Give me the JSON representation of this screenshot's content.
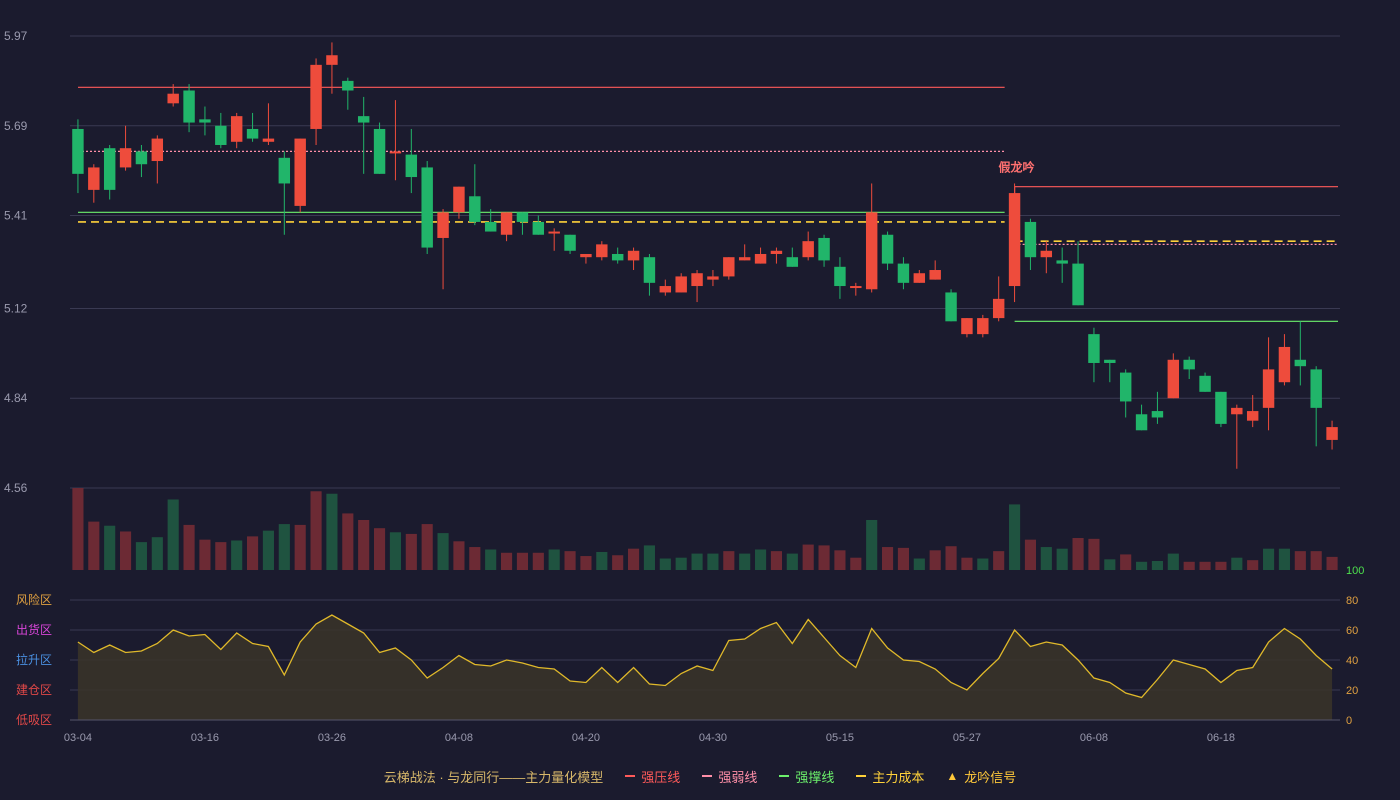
{
  "chart_data": {
    "type": "candlestick",
    "price_axis": {
      "min": 4.56,
      "max": 5.97,
      "ticks": [
        "5.97",
        "5.69",
        "5.41",
        "5.12",
        "4.84",
        "4.56"
      ]
    },
    "indicator_axis": {
      "min": 0,
      "max": 100,
      "ticks": [
        "100",
        "80",
        "60",
        "40",
        "20",
        "0"
      ]
    },
    "zones": [
      {
        "label": "风险区",
        "color": "#e0a040"
      },
      {
        "label": "出货区",
        "color": "#d845d8"
      },
      {
        "label": "拉升区",
        "color": "#4a8fe0"
      },
      {
        "label": "建仓区",
        "color": "#e04848"
      },
      {
        "label": "低吸区",
        "color": "#e04848"
      }
    ],
    "x_ticks": [
      {
        "index": 0,
        "label": "03-04"
      },
      {
        "index": 8,
        "label": "03-16"
      },
      {
        "index": 16,
        "label": "03-26"
      },
      {
        "index": 24,
        "label": "04-08"
      },
      {
        "index": 32,
        "label": "04-20"
      },
      {
        "index": 40,
        "label": "04-30"
      },
      {
        "index": 48,
        "label": "05-15"
      },
      {
        "index": 56,
        "label": "05-27"
      },
      {
        "index": 64,
        "label": "06-08"
      },
      {
        "index": 72,
        "label": "06-18"
      }
    ],
    "candles": [
      [
        5.68,
        5.54,
        5.71,
        5.48
      ],
      [
        5.49,
        5.56,
        5.57,
        5.45
      ],
      [
        5.62,
        5.49,
        5.63,
        5.46
      ],
      [
        5.56,
        5.62,
        5.69,
        5.55
      ],
      [
        5.61,
        5.57,
        5.63,
        5.53
      ],
      [
        5.58,
        5.65,
        5.66,
        5.51
      ],
      [
        5.76,
        5.79,
        5.82,
        5.75
      ],
      [
        5.8,
        5.7,
        5.82,
        5.67
      ],
      [
        5.71,
        5.7,
        5.75,
        5.66
      ],
      [
        5.69,
        5.63,
        5.73,
        5.62
      ],
      [
        5.64,
        5.72,
        5.73,
        5.62
      ],
      [
        5.68,
        5.65,
        5.73,
        5.64
      ],
      [
        5.64,
        5.65,
        5.76,
        5.63
      ],
      [
        5.59,
        5.51,
        5.61,
        5.35
      ],
      [
        5.44,
        5.65,
        5.65,
        5.42
      ],
      [
        5.68,
        5.88,
        5.9,
        5.63
      ],
      [
        5.88,
        5.91,
        5.95,
        5.79
      ],
      [
        5.83,
        5.8,
        5.84,
        5.74
      ],
      [
        5.72,
        5.7,
        5.78,
        5.54
      ],
      [
        5.68,
        5.54,
        5.7,
        5.54
      ],
      [
        5.61,
        5.61,
        5.77,
        5.52
      ],
      [
        5.6,
        5.53,
        5.68,
        5.48
      ],
      [
        5.56,
        5.31,
        5.58,
        5.29
      ],
      [
        5.34,
        5.42,
        5.43,
        5.18
      ],
      [
        5.42,
        5.5,
        5.5,
        5.4
      ],
      [
        5.47,
        5.39,
        5.57,
        5.38
      ],
      [
        5.39,
        5.36,
        5.43,
        5.36
      ],
      [
        5.35,
        5.42,
        5.42,
        5.33
      ],
      [
        5.42,
        5.39,
        5.42,
        5.35
      ],
      [
        5.39,
        5.35,
        5.41,
        5.35
      ],
      [
        5.36,
        5.36,
        5.37,
        5.3
      ],
      [
        5.35,
        5.3,
        5.35,
        5.29
      ],
      [
        5.28,
        5.29,
        5.29,
        5.26
      ],
      [
        5.28,
        5.32,
        5.33,
        5.27
      ],
      [
        5.29,
        5.27,
        5.31,
        5.26
      ],
      [
        5.27,
        5.3,
        5.31,
        5.24
      ],
      [
        5.28,
        5.2,
        5.29,
        5.16
      ],
      [
        5.17,
        5.19,
        5.21,
        5.16
      ],
      [
        5.17,
        5.22,
        5.23,
        5.17
      ],
      [
        5.19,
        5.23,
        5.24,
        5.14
      ],
      [
        5.21,
        5.22,
        5.24,
        5.19
      ],
      [
        5.22,
        5.28,
        5.28,
        5.21
      ],
      [
        5.27,
        5.28,
        5.32,
        5.27
      ],
      [
        5.26,
        5.29,
        5.31,
        5.26
      ],
      [
        5.29,
        5.3,
        5.31,
        5.26
      ],
      [
        5.28,
        5.25,
        5.31,
        5.25
      ],
      [
        5.28,
        5.33,
        5.36,
        5.27
      ],
      [
        5.34,
        5.27,
        5.35,
        5.25
      ],
      [
        5.25,
        5.19,
        5.28,
        5.15
      ],
      [
        5.19,
        5.19,
        5.2,
        5.16
      ],
      [
        5.18,
        5.42,
        5.51,
        5.17
      ],
      [
        5.35,
        5.26,
        5.36,
        5.24
      ],
      [
        5.26,
        5.2,
        5.28,
        5.18
      ],
      [
        5.2,
        5.23,
        5.24,
        5.2
      ],
      [
        5.21,
        5.24,
        5.27,
        5.21
      ],
      [
        5.17,
        5.08,
        5.18,
        5.08
      ],
      [
        5.04,
        5.09,
        5.09,
        5.03
      ],
      [
        5.04,
        5.09,
        5.1,
        5.03
      ],
      [
        5.09,
        5.15,
        5.22,
        5.08
      ],
      [
        5.19,
        5.48,
        5.51,
        5.14
      ],
      [
        5.39,
        5.28,
        5.4,
        5.24
      ],
      [
        5.28,
        5.3,
        5.33,
        5.23
      ],
      [
        5.27,
        5.26,
        5.31,
        5.2
      ],
      [
        5.26,
        5.13,
        5.33,
        5.13
      ],
      [
        5.04,
        4.95,
        5.06,
        4.89
      ],
      [
        4.96,
        4.95,
        4.96,
        4.89
      ],
      [
        4.92,
        4.83,
        4.93,
        4.78
      ],
      [
        4.79,
        4.74,
        4.82,
        4.74
      ],
      [
        4.8,
        4.78,
        4.86,
        4.76
      ],
      [
        4.84,
        4.96,
        4.98,
        4.84
      ],
      [
        4.96,
        4.93,
        4.97,
        4.9
      ],
      [
        4.91,
        4.86,
        4.92,
        4.86
      ],
      [
        4.86,
        4.76,
        4.86,
        4.75
      ],
      [
        4.79,
        4.81,
        4.82,
        4.62
      ],
      [
        4.77,
        4.8,
        4.85,
        4.75
      ],
      [
        4.81,
        4.93,
        5.03,
        4.74
      ],
      [
        4.89,
        5.0,
        5.04,
        4.88
      ],
      [
        4.96,
        4.94,
        5.08,
        4.88
      ],
      [
        4.93,
        4.81,
        4.94,
        4.69
      ],
      [
        4.71,
        4.75,
        4.77,
        4.68
      ]
    ],
    "volume_dir": [
      1,
      1,
      0,
      1,
      0,
      0,
      0,
      1,
      1,
      1,
      0,
      1,
      0,
      0,
      1,
      1,
      0,
      1,
      1,
      1,
      0,
      1,
      1,
      0,
      1,
      1,
      0,
      1,
      1,
      1,
      0,
      1,
      1,
      0,
      1,
      1,
      0,
      0,
      0,
      0,
      0,
      1,
      0,
      0,
      1,
      0,
      1,
      1,
      1,
      1,
      0,
      1,
      1,
      0,
      1,
      1,
      1,
      0,
      1,
      0,
      1,
      0,
      0,
      1,
      1,
      0,
      1,
      0,
      0,
      0,
      1,
      1,
      1,
      0,
      1,
      0,
      0,
      1,
      1,
      1
    ],
    "volume_rel": [
      1.0,
      0.59,
      0.54,
      0.47,
      0.34,
      0.4,
      0.86,
      0.55,
      0.37,
      0.34,
      0.36,
      0.41,
      0.48,
      0.56,
      0.55,
      0.96,
      0.93,
      0.69,
      0.61,
      0.51,
      0.46,
      0.44,
      0.56,
      0.45,
      0.35,
      0.28,
      0.25,
      0.21,
      0.21,
      0.21,
      0.25,
      0.23,
      0.17,
      0.22,
      0.18,
      0.26,
      0.3,
      0.14,
      0.15,
      0.2,
      0.2,
      0.23,
      0.2,
      0.25,
      0.23,
      0.2,
      0.31,
      0.3,
      0.24,
      0.15,
      0.61,
      0.28,
      0.27,
      0.14,
      0.24,
      0.29,
      0.15,
      0.14,
      0.23,
      0.8,
      0.37,
      0.28,
      0.26,
      0.39,
      0.38,
      0.13,
      0.19,
      0.1,
      0.11,
      0.2,
      0.1,
      0.1,
      0.1,
      0.15,
      0.12,
      0.26,
      0.26,
      0.23,
      0.23,
      0.16
    ],
    "indicator": [
      52,
      45,
      50,
      45,
      46,
      51,
      60,
      56,
      57,
      47,
      58,
      51,
      49,
      30,
      52,
      64,
      70,
      64,
      58,
      45,
      48,
      40,
      28,
      35,
      43,
      37,
      36,
      40,
      38,
      35,
      34,
      26,
      25,
      35,
      25,
      35,
      24,
      23,
      31,
      36,
      33,
      53,
      54,
      61,
      65,
      51,
      67,
      55,
      43,
      35,
      61,
      48,
      40,
      39,
      34,
      25,
      20,
      31,
      41,
      60,
      49,
      52,
      50,
      40,
      28,
      25,
      18,
      15,
      27,
      40,
      37,
      34,
      25,
      33,
      35,
      52,
      61,
      54,
      43,
      34
    ],
    "lines": {
      "strong_pressure": [
        {
          "from": 0,
          "to": 58,
          "y": 5.81
        },
        {
          "from": 59,
          "to": 79,
          "y": 5.5
        }
      ],
      "strong_weak": [
        {
          "from": 0,
          "to": 58,
          "y": 5.61
        },
        {
          "from": 59,
          "to": 79,
          "y": 5.32
        }
      ],
      "strong_support": [
        {
          "from": 0,
          "to": 58,
          "y": 5.42
        },
        {
          "from": 59,
          "to": 79,
          "y": 5.08
        }
      ],
      "main_cost": [
        {
          "from": 0,
          "to": 58,
          "y": 5.39
        },
        {
          "from": 59,
          "to": 79,
          "y": 5.33
        }
      ]
    },
    "annotation": {
      "text": "假龙吟",
      "index": 59
    }
  },
  "legend": {
    "title": "云梯战法 · 与龙同行——主力量化模型",
    "items": [
      {
        "label": "强压线",
        "color": "#ff5a5a",
        "style": "solid"
      },
      {
        "label": "强弱线",
        "color": "#ff8fa8",
        "style": "dash"
      },
      {
        "label": "强撑线",
        "color": "#6cf06c",
        "style": "solid"
      },
      {
        "label": "主力成本",
        "color": "#ffd23a",
        "style": "dash"
      },
      {
        "label": "龙吟信号",
        "color": "#ffc83a",
        "style": "triangle"
      }
    ]
  },
  "colors": {
    "up": "#ee4c3c",
    "down": "#21b56a",
    "vol_up": "#6c2a34",
    "vol_down": "#1f5340",
    "grid": "#3a3a52",
    "axis_text": "#9a9aae",
    "indicator_line": "#e0b92a",
    "indicator_fill": "#3a3428",
    "indicator_axis_top": "#4de04d",
    "indicator_axis": "#e0a040"
  }
}
